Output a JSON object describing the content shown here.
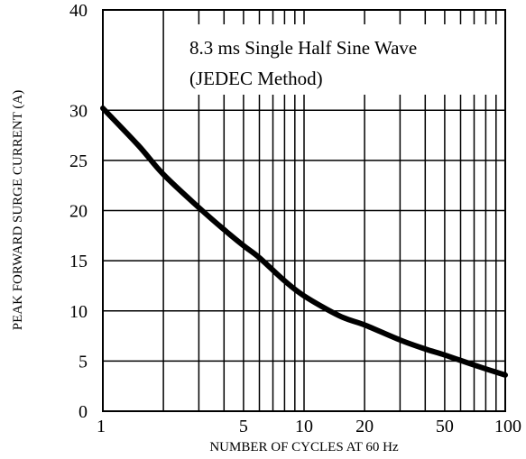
{
  "chart_data": {
    "type": "line",
    "xlabel": "NUMBER OF CYCLES AT 60 Hz",
    "ylabel": "PEAK FORWARD SURGE CURRENT (A)",
    "annotation_lines": [
      "8.3 ms Single Half Sine Wave",
      "(JEDEC Method)"
    ],
    "x_scale": "log",
    "xlim": [
      1,
      100
    ],
    "x_gridlines": [
      2,
      3,
      4,
      5,
      6,
      7,
      8,
      9,
      10,
      20,
      30,
      40,
      50,
      60,
      70,
      80,
      90
    ],
    "x_ticks": [
      {
        "value": 1,
        "label": "1"
      },
      {
        "value": 5,
        "label": "5"
      },
      {
        "value": 10,
        "label": "10"
      },
      {
        "value": 20,
        "label": "20"
      },
      {
        "value": 50,
        "label": "50"
      },
      {
        "value": 100,
        "label": "100"
      }
    ],
    "y_scale": "linear",
    "ylim": [
      0,
      40
    ],
    "y_ticks": [
      {
        "value": 0,
        "label": "0"
      },
      {
        "value": 5,
        "label": "5"
      },
      {
        "value": 10,
        "label": "10"
      },
      {
        "value": 15,
        "label": "15"
      },
      {
        "value": 20,
        "label": "20"
      },
      {
        "value": 25,
        "label": "25"
      },
      {
        "value": 30,
        "label": "30"
      },
      {
        "value": 40,
        "label": "40"
      }
    ],
    "grid": true,
    "series": [
      {
        "color": "#000000",
        "x": [
          1,
          1.5,
          2,
          3,
          4,
          5,
          6,
          8,
          10,
          15,
          20,
          30,
          40,
          50,
          70,
          100
        ],
        "y": [
          30.2,
          26.5,
          23.6,
          20.3,
          18.1,
          16.5,
          15.3,
          13.0,
          11.5,
          9.5,
          8.6,
          7.1,
          6.2,
          5.6,
          4.6,
          3.6
        ]
      }
    ]
  }
}
